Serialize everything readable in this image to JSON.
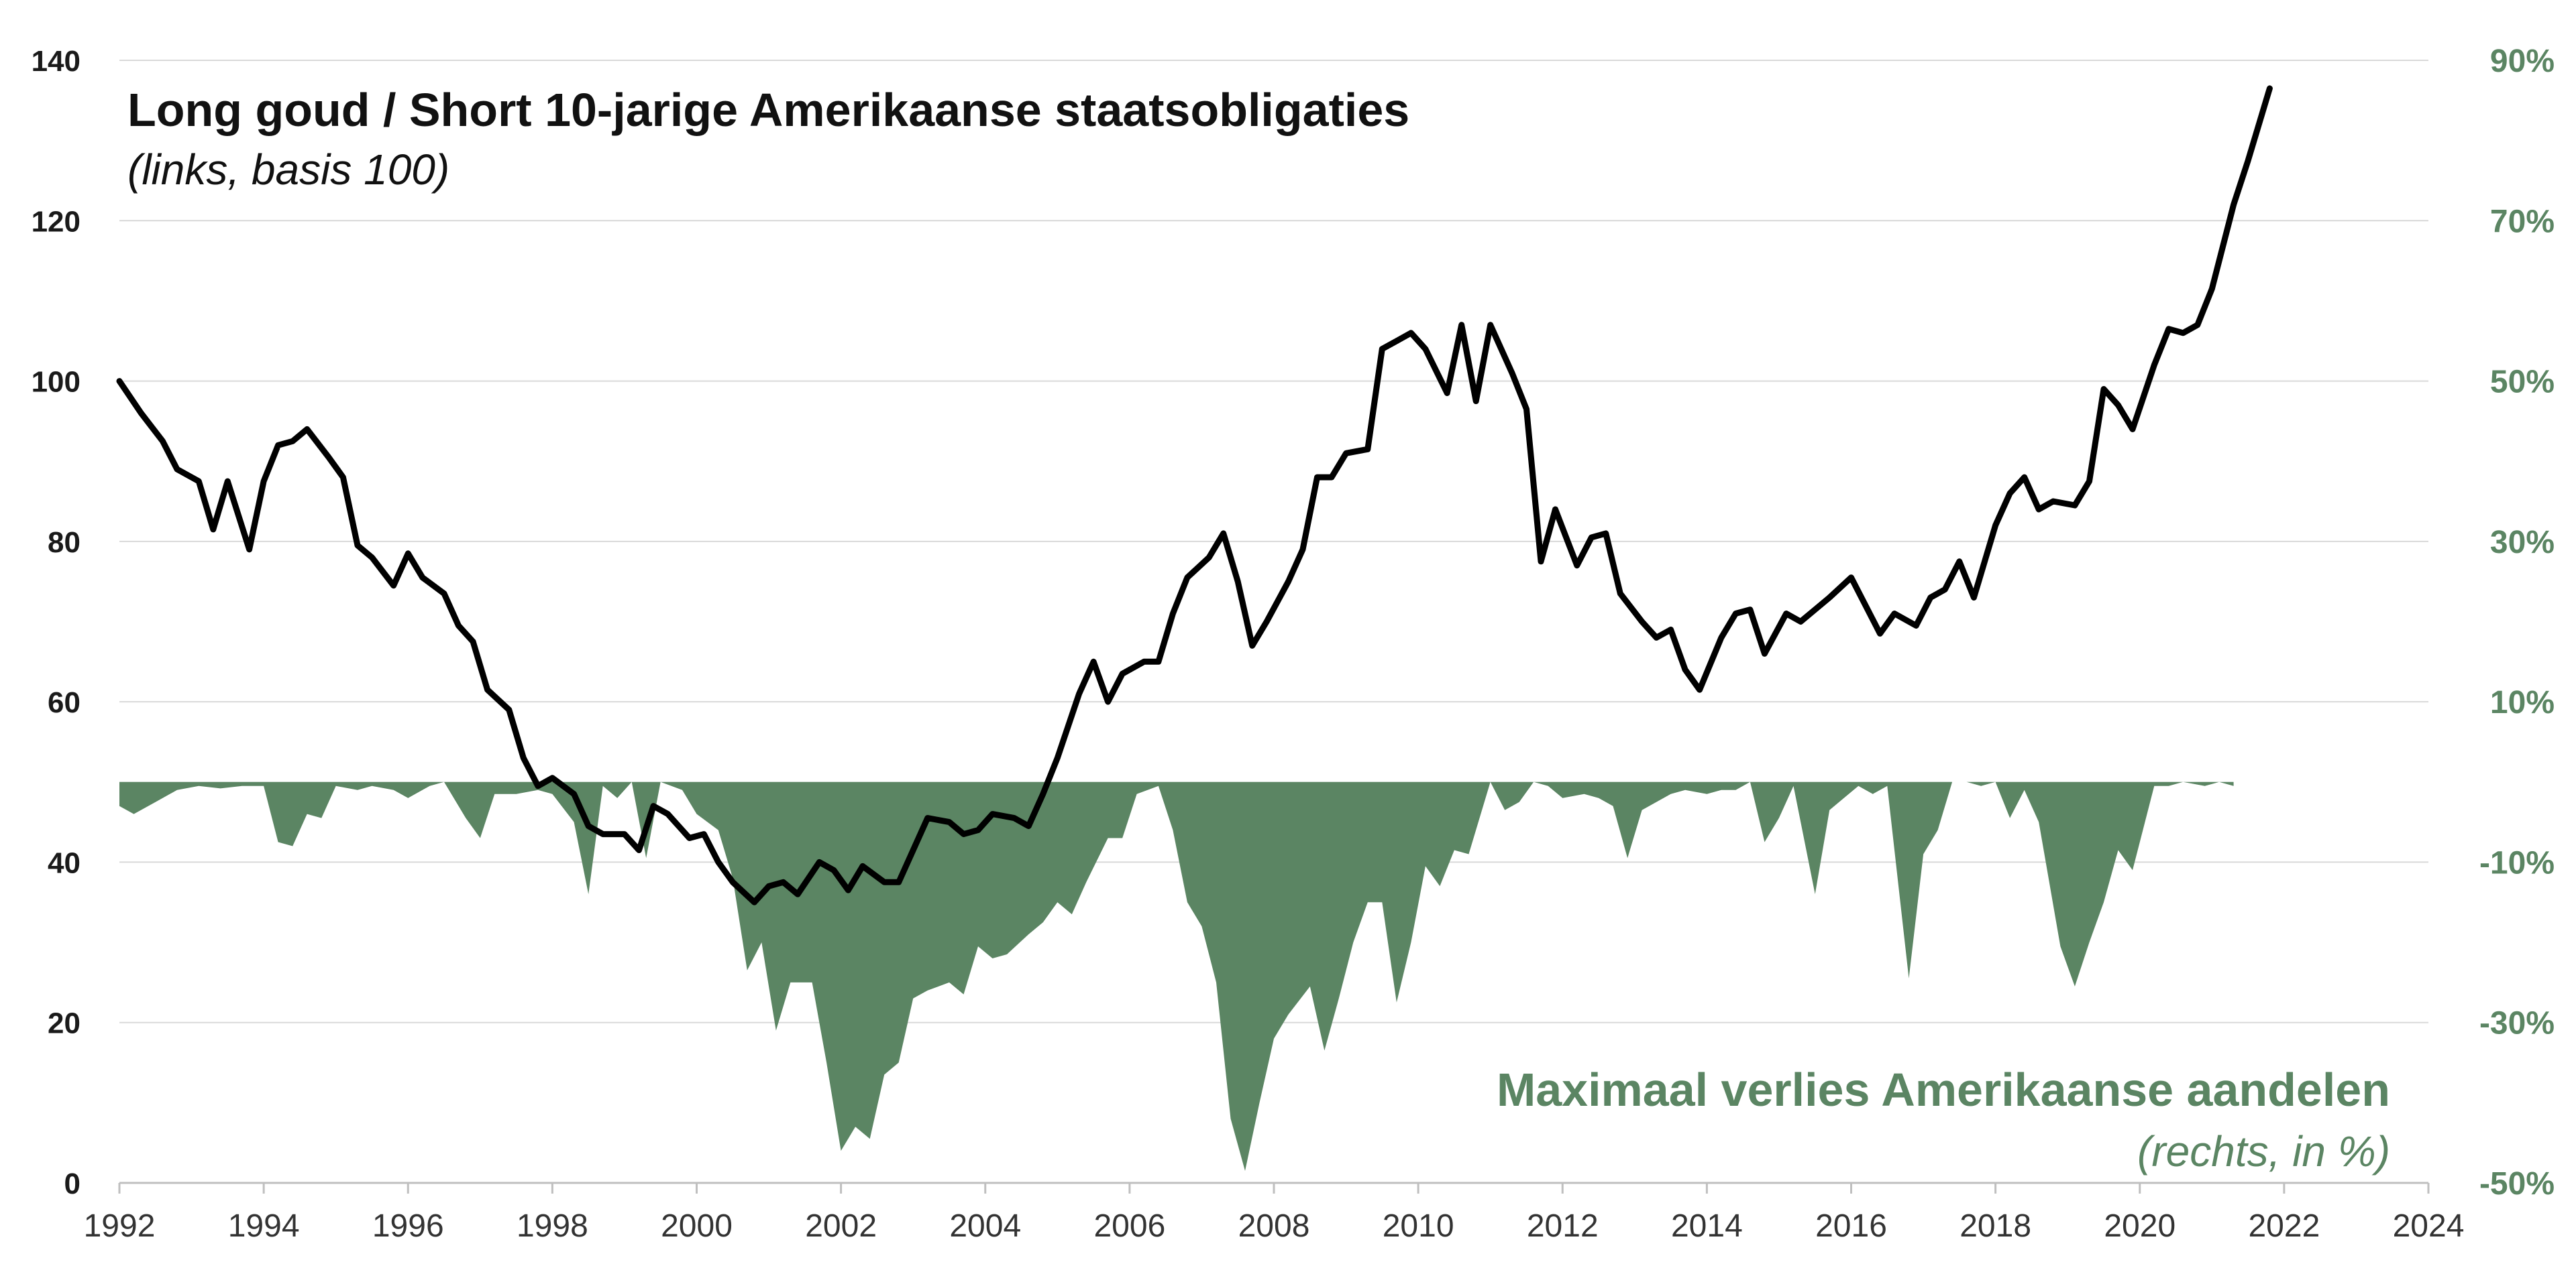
{
  "chart_data": {
    "type": "line",
    "title": "Long goud / Short 10-jarige Amerikaanse staatsobligaties",
    "subtitle": "(links, basis 100)",
    "series": [
      {
        "name": "Long goud / Short 10-jarige Amerikaanse staatsobligaties",
        "axis": "left",
        "type": "line",
        "color": "#000000",
        "points": [
          [
            1992.0,
            100
          ],
          [
            1992.3,
            96
          ],
          [
            1992.6,
            92.5
          ],
          [
            1992.8,
            89
          ],
          [
            1993.1,
            87.5
          ],
          [
            1993.3,
            81.5
          ],
          [
            1993.5,
            87.5
          ],
          [
            1993.8,
            79
          ],
          [
            1994.0,
            87.5
          ],
          [
            1994.2,
            92
          ],
          [
            1994.4,
            92.5
          ],
          [
            1994.6,
            94
          ],
          [
            1994.9,
            90.5
          ],
          [
            1995.1,
            88
          ],
          [
            1995.3,
            79.5
          ],
          [
            1995.5,
            78
          ],
          [
            1995.8,
            74.5
          ],
          [
            1996.0,
            78.5
          ],
          [
            1996.2,
            75.5
          ],
          [
            1996.5,
            73.5
          ],
          [
            1996.7,
            69.5
          ],
          [
            1996.9,
            67.5
          ],
          [
            1997.1,
            61.5
          ],
          [
            1997.4,
            59
          ],
          [
            1997.6,
            53
          ],
          [
            1997.8,
            49.5
          ],
          [
            1998.0,
            50.5
          ],
          [
            1998.3,
            48.5
          ],
          [
            1998.5,
            44.5
          ],
          [
            1998.7,
            43.5
          ],
          [
            1999.0,
            43.5
          ],
          [
            1999.2,
            41.5
          ],
          [
            1999.4,
            47
          ],
          [
            1999.6,
            46
          ],
          [
            1999.9,
            43
          ],
          [
            2000.1,
            43.5
          ],
          [
            2000.3,
            40
          ],
          [
            2000.5,
            37.5
          ],
          [
            2000.8,
            35
          ],
          [
            2001.0,
            37
          ],
          [
            2001.2,
            37.5
          ],
          [
            2001.4,
            36
          ],
          [
            2001.7,
            40
          ],
          [
            2001.9,
            39
          ],
          [
            2002.1,
            36.5
          ],
          [
            2002.3,
            39.5
          ],
          [
            2002.6,
            37.5
          ],
          [
            2002.8,
            37.5
          ],
          [
            2003.0,
            41.5
          ],
          [
            2003.2,
            45.5
          ],
          [
            2003.5,
            45
          ],
          [
            2003.7,
            43.5
          ],
          [
            2003.9,
            44
          ],
          [
            2004.1,
            46
          ],
          [
            2004.4,
            45.5
          ],
          [
            2004.6,
            44.5
          ],
          [
            2004.8,
            48.5
          ],
          [
            2005.0,
            53
          ],
          [
            2005.3,
            61
          ],
          [
            2005.5,
            65
          ],
          [
            2005.7,
            60
          ],
          [
            2005.9,
            63.5
          ],
          [
            2006.2,
            65
          ],
          [
            2006.4,
            65
          ],
          [
            2006.6,
            71
          ],
          [
            2006.8,
            75.5
          ],
          [
            2007.1,
            78
          ],
          [
            2007.3,
            81
          ],
          [
            2007.5,
            75
          ],
          [
            2007.7,
            67
          ],
          [
            2007.9,
            70
          ],
          [
            2008.2,
            75
          ],
          [
            2008.4,
            79
          ],
          [
            2008.6,
            88
          ],
          [
            2008.8,
            88
          ],
          [
            2009.0,
            91
          ],
          [
            2009.3,
            91.5
          ],
          [
            2009.5,
            104
          ],
          [
            2009.7,
            105
          ],
          [
            2009.9,
            106
          ],
          [
            2010.1,
            104
          ],
          [
            2010.4,
            98.5
          ],
          [
            2010.6,
            107
          ],
          [
            2010.8,
            97.5
          ],
          [
            2011.0,
            107
          ],
          [
            2011.3,
            101
          ],
          [
            2011.5,
            96.5
          ],
          [
            2011.7,
            77.5
          ],
          [
            2011.9,
            84
          ],
          [
            2012.2,
            77
          ],
          [
            2012.4,
            80.5
          ],
          [
            2012.6,
            81
          ],
          [
            2012.8,
            73.5
          ],
          [
            2013.1,
            70
          ],
          [
            2013.3,
            68
          ],
          [
            2013.5,
            69
          ],
          [
            2013.7,
            64
          ],
          [
            2013.9,
            61.5
          ],
          [
            2014.2,
            68
          ],
          [
            2014.4,
            71
          ],
          [
            2014.6,
            71.5
          ],
          [
            2014.8,
            66
          ],
          [
            2015.1,
            71
          ],
          [
            2015.3,
            70
          ],
          [
            2015.5,
            71.5
          ],
          [
            2015.7,
            73
          ],
          [
            2016.0,
            75.5
          ],
          [
            2016.2,
            72
          ],
          [
            2016.4,
            68.5
          ],
          [
            2016.6,
            71
          ],
          [
            2016.9,
            69.5
          ],
          [
            2017.1,
            73
          ],
          [
            2017.3,
            74
          ],
          [
            2017.5,
            77.5
          ],
          [
            2017.7,
            73
          ],
          [
            2018.0,
            82
          ],
          [
            2018.2,
            86
          ],
          [
            2018.4,
            88
          ],
          [
            2018.6,
            84
          ],
          [
            2018.8,
            85
          ],
          [
            2019.1,
            84.5
          ],
          [
            2019.3,
            87.5
          ],
          [
            2019.5,
            99
          ],
          [
            2019.7,
            97
          ],
          [
            2019.9,
            94
          ],
          [
            2020.2,
            102
          ],
          [
            2020.4,
            106.5
          ],
          [
            2020.6,
            106
          ],
          [
            2020.8,
            107
          ],
          [
            2021.0,
            111.5
          ],
          [
            2021.3,
            122
          ],
          [
            2021.5,
            127.5
          ],
          [
            2021.8,
            136.5
          ]
        ]
      },
      {
        "name": "Maximaal verlies Amerikaanse aandelen",
        "axis": "right",
        "type": "area",
        "color": "#5b8563",
        "points": [
          [
            1992.0,
            -3
          ],
          [
            1992.2,
            -4
          ],
          [
            1992.5,
            -2.5
          ],
          [
            1992.8,
            -1
          ],
          [
            1993.1,
            -0.5
          ],
          [
            1993.4,
            -0.8
          ],
          [
            1993.7,
            -0.5
          ],
          [
            1994.0,
            -0.5
          ],
          [
            1994.2,
            -7.5
          ],
          [
            1994.4,
            -8
          ],
          [
            1994.6,
            -4
          ],
          [
            1994.8,
            -4.5
          ],
          [
            1995.0,
            -0.5
          ],
          [
            1995.3,
            -1
          ],
          [
            1995.5,
            -0.5
          ],
          [
            1995.8,
            -1
          ],
          [
            1996.0,
            -2
          ],
          [
            1996.3,
            -0.5
          ],
          [
            1996.5,
            0
          ],
          [
            1996.8,
            -4.5
          ],
          [
            1997.0,
            -7
          ],
          [
            1997.2,
            -1.5
          ],
          [
            1997.5,
            -1.5
          ],
          [
            1997.8,
            -1
          ],
          [
            1998.0,
            -1.5
          ],
          [
            1998.3,
            -5
          ],
          [
            1998.5,
            -14
          ],
          [
            1998.7,
            -0.5
          ],
          [
            1998.9,
            -2
          ],
          [
            1999.1,
            0
          ],
          [
            1999.3,
            -9.5
          ],
          [
            1999.5,
            0
          ],
          [
            1999.8,
            -1
          ],
          [
            2000.0,
            -4
          ],
          [
            2000.3,
            -6
          ],
          [
            2000.5,
            -12
          ],
          [
            2000.7,
            -23.5
          ],
          [
            2000.9,
            -20
          ],
          [
            2001.1,
            -31
          ],
          [
            2001.3,
            -25
          ],
          [
            2001.6,
            -25
          ],
          [
            2001.8,
            -35
          ],
          [
            2002.0,
            -46
          ],
          [
            2002.2,
            -43
          ],
          [
            2002.4,
            -44.5
          ],
          [
            2002.6,
            -36.5
          ],
          [
            2002.8,
            -35
          ],
          [
            2003.0,
            -27
          ],
          [
            2003.2,
            -26
          ],
          [
            2003.5,
            -25
          ],
          [
            2003.7,
            -26.5
          ],
          [
            2003.9,
            -20.5
          ],
          [
            2004.1,
            -22
          ],
          [
            2004.3,
            -21.5
          ],
          [
            2004.6,
            -19
          ],
          [
            2004.8,
            -17.5
          ],
          [
            2005.0,
            -15
          ],
          [
            2005.2,
            -16.5
          ],
          [
            2005.4,
            -12.5
          ],
          [
            2005.7,
            -7
          ],
          [
            2005.9,
            -7
          ],
          [
            2006.1,
            -1.5
          ],
          [
            2006.4,
            -0.5
          ],
          [
            2006.6,
            -6
          ],
          [
            2006.8,
            -15
          ],
          [
            2007.0,
            -18
          ],
          [
            2007.2,
            -25
          ],
          [
            2007.4,
            -42
          ],
          [
            2007.6,
            -48.5
          ],
          [
            2007.8,
            -40
          ],
          [
            2008.0,
            -32
          ],
          [
            2008.2,
            -29
          ],
          [
            2008.5,
            -25.5
          ],
          [
            2008.7,
            -33.5
          ],
          [
            2008.9,
            -27
          ],
          [
            2009.1,
            -20
          ],
          [
            2009.3,
            -15
          ],
          [
            2009.5,
            -15
          ],
          [
            2009.7,
            -27.5
          ],
          [
            2009.9,
            -20
          ],
          [
            2010.1,
            -10.5
          ],
          [
            2010.3,
            -13
          ],
          [
            2010.5,
            -8.5
          ],
          [
            2010.7,
            -9
          ],
          [
            2011.0,
            0
          ],
          [
            2011.2,
            -3.5
          ],
          [
            2011.4,
            -2.5
          ],
          [
            2011.6,
            0
          ],
          [
            2011.8,
            -0.5
          ],
          [
            2012.0,
            -2
          ],
          [
            2012.3,
            -1.5
          ],
          [
            2012.5,
            -2
          ],
          [
            2012.7,
            -3
          ],
          [
            2012.9,
            -9.5
          ],
          [
            2013.1,
            -3.5
          ],
          [
            2013.3,
            -2.5
          ],
          [
            2013.5,
            -1.5
          ],
          [
            2013.7,
            -1
          ],
          [
            2014.0,
            -1.5
          ],
          [
            2014.2,
            -1
          ],
          [
            2014.4,
            -1
          ],
          [
            2014.6,
            0
          ],
          [
            2014.8,
            -7.5
          ],
          [
            2015.0,
            -4.5
          ],
          [
            2015.2,
            -0.5
          ],
          [
            2015.5,
            -14
          ],
          [
            2015.7,
            -3.5
          ],
          [
            2015.9,
            -2
          ],
          [
            2016.1,
            -0.5
          ],
          [
            2016.3,
            -1.5
          ],
          [
            2016.5,
            -0.5
          ],
          [
            2016.8,
            -24.5
          ],
          [
            2017.0,
            -9
          ],
          [
            2017.2,
            -6
          ],
          [
            2017.4,
            0
          ],
          [
            2017.6,
            0
          ],
          [
            2017.8,
            -0.5
          ],
          [
            2018.0,
            0
          ],
          [
            2018.2,
            -4.5
          ],
          [
            2018.4,
            -1
          ],
          [
            2018.6,
            -5
          ],
          [
            2018.9,
            -20.5
          ],
          [
            2019.1,
            -25.5
          ],
          [
            2019.3,
            -20
          ],
          [
            2019.5,
            -15
          ],
          [
            2019.7,
            -8.5
          ],
          [
            2019.9,
            -11
          ],
          [
            2020.2,
            -0.5
          ],
          [
            2020.4,
            -0.5
          ],
          [
            2020.6,
            0
          ],
          [
            2020.9,
            -0.5
          ],
          [
            2021.1,
            0
          ],
          [
            2021.3,
            -0.5
          ]
        ]
      }
    ],
    "x_ticks": [
      "1992",
      "1994",
      "1996",
      "1998",
      "2000",
      "2002",
      "2004",
      "2006",
      "2008",
      "2010",
      "2012",
      "2014",
      "2016",
      "2018",
      "2020",
      "2022",
      "2024"
    ],
    "y_left_ticks": [
      "0",
      "20",
      "40",
      "60",
      "80",
      "100",
      "120",
      "140"
    ],
    "y_right_ticks": [
      "-50%",
      "-30%",
      "-10%",
      "10%",
      "30%",
      "50%",
      "70%",
      "90%"
    ],
    "ylim_left": [
      0,
      140
    ],
    "ylim_right": [
      -50,
      90
    ],
    "grid": true,
    "annotations": [
      {
        "text": "Maximaal verlies Amerikaanse aandelen",
        "style": "bold",
        "color": "#5b8563",
        "anchor": "lower-right"
      },
      {
        "text": "(rechts, in %)",
        "style": "italic",
        "color": "#5b8563",
        "anchor": "lower-right"
      }
    ]
  }
}
